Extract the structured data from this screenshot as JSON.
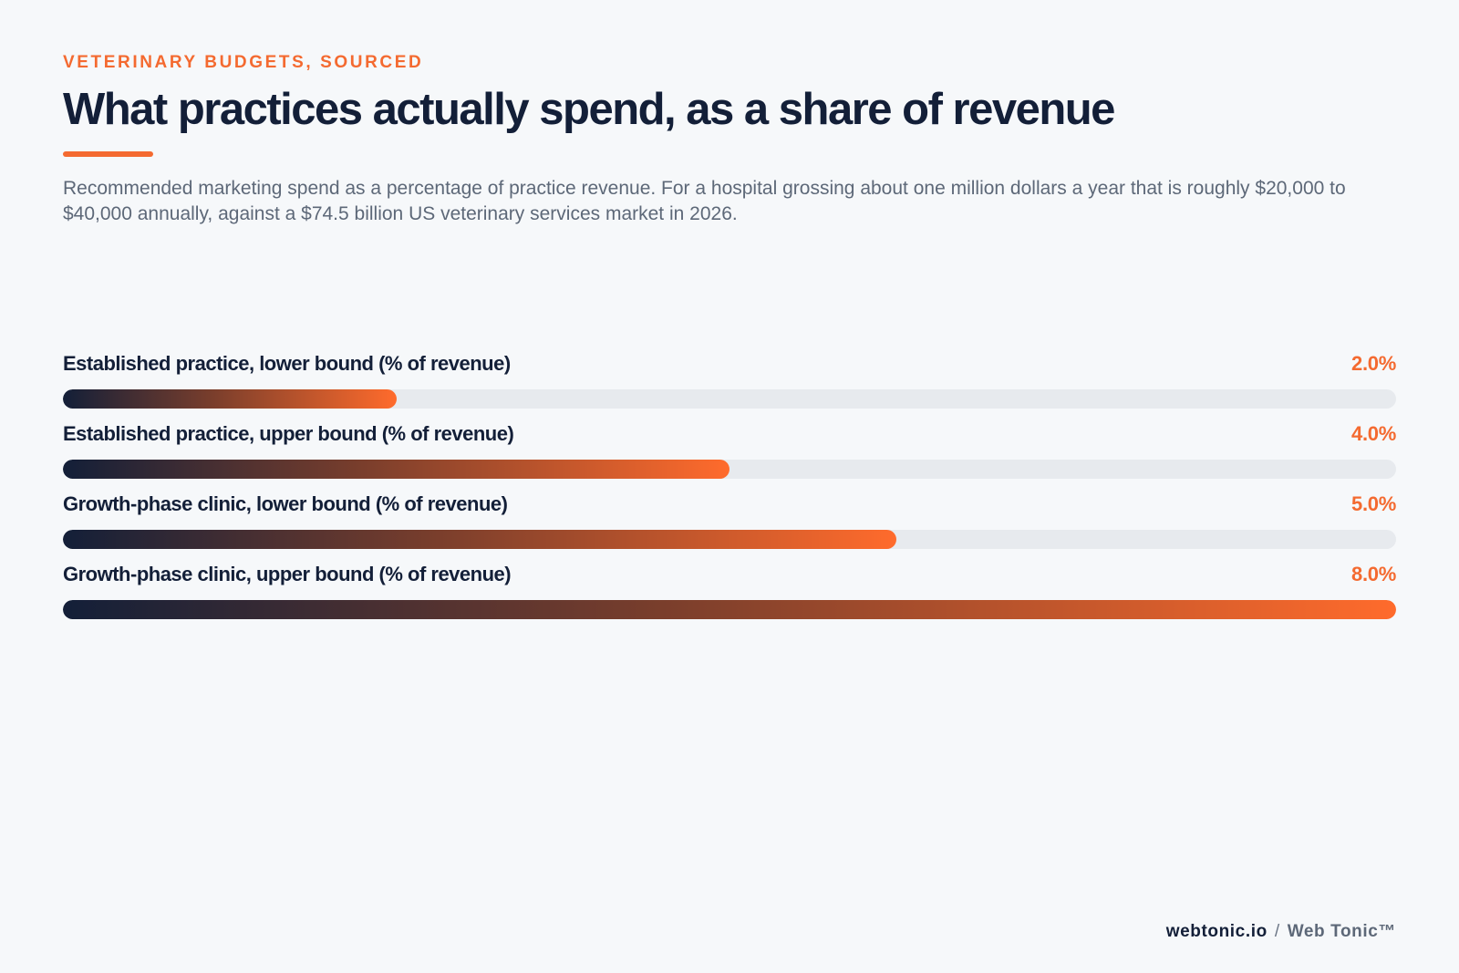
{
  "header": {
    "eyebrow": "VETERINARY BUDGETS, SOURCED",
    "title": "What practices actually spend, as a share of revenue",
    "subtitle": "Recommended marketing spend as a percentage of practice revenue. For a hospital grossing about one million dollars a year that is roughly $20,000 to $40,000 annually, against a $74.5 billion US veterinary services market in 2026."
  },
  "colors": {
    "accent": "#f46a30",
    "navy": "#131f38",
    "track": "#e7eaee",
    "background": "#f6f8fa"
  },
  "chart_data": {
    "type": "bar",
    "orientation": "horizontal",
    "categories": [
      "Established practice, lower bound (% of revenue)",
      "Established practice, upper bound (% of revenue)",
      "Growth-phase clinic, lower bound (% of revenue)",
      "Growth-phase clinic, upper bound (% of revenue)"
    ],
    "values": [
      2.0,
      4.0,
      5.0,
      8.0
    ],
    "value_labels": [
      "2.0%",
      "4.0%",
      "5.0%",
      "8.0%"
    ],
    "xlim": [
      0,
      8
    ],
    "grid": false,
    "legend": "none"
  },
  "footer": {
    "domain": "webtonic.io",
    "separator": "/",
    "brand": "Web Tonic™"
  }
}
